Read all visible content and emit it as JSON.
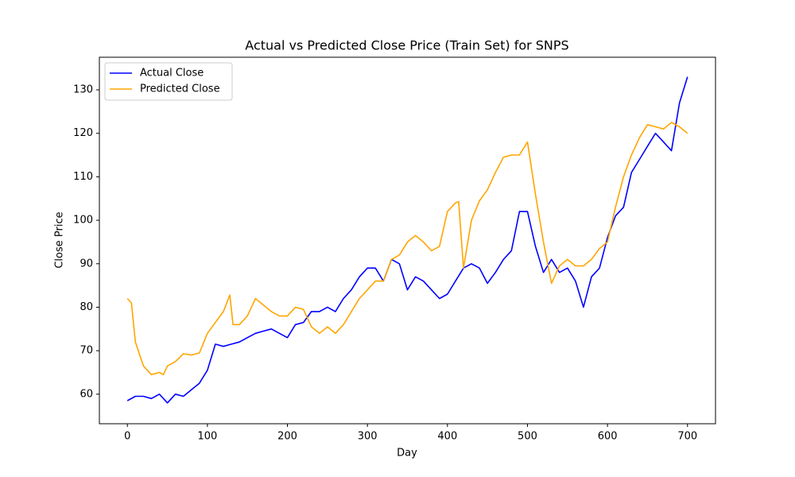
{
  "chart_data": {
    "type": "line",
    "title": "Actual vs Predicted Close Price (Train Set) for SNPS",
    "x_label": "Day",
    "y_label": "Close Price",
    "xlim": [
      -35,
      735
    ],
    "ylim": [
      53.2,
      137.5
    ],
    "xticks": [
      0,
      100,
      200,
      300,
      400,
      500,
      600,
      700
    ],
    "yticks": [
      60,
      70,
      80,
      90,
      100,
      110,
      120,
      130
    ],
    "legend": "upper left",
    "series": [
      {
        "name": "Actual Close",
        "color": "#0000ff",
        "x": [
          0,
          10,
          20,
          30,
          40,
          50,
          60,
          70,
          80,
          90,
          100,
          110,
          120,
          130,
          140,
          150,
          160,
          170,
          180,
          190,
          200,
          210,
          220,
          230,
          240,
          250,
          260,
          270,
          280,
          290,
          300,
          310,
          320,
          330,
          340,
          350,
          360,
          370,
          380,
          390,
          400,
          410,
          420,
          430,
          440,
          450,
          460,
          470,
          480,
          490,
          500,
          510,
          520,
          530,
          540,
          550,
          560,
          570,
          580,
          590,
          600,
          610,
          620,
          630,
          640,
          650,
          660,
          670,
          680,
          690,
          700
        ],
        "values": [
          58.5,
          59.5,
          59.5,
          59,
          60,
          58,
          60,
          59.5,
          61,
          62.5,
          65.5,
          71.5,
          71,
          71.5,
          72,
          73,
          74,
          74.5,
          75,
          74,
          73,
          76,
          76.5,
          79,
          79,
          80,
          79,
          82,
          84,
          87,
          89,
          89,
          86,
          91,
          90,
          84,
          87,
          86,
          84,
          82,
          83,
          86,
          89,
          90,
          89,
          85.5,
          88,
          91,
          93,
          102,
          102,
          94,
          88,
          91,
          88,
          89,
          86,
          80,
          87,
          89,
          96,
          101,
          103,
          111,
          114,
          117,
          120,
          118,
          116,
          127,
          133
        ]
      },
      {
        "name": "Predicted Close",
        "color": "#ffa500",
        "x": [
          0,
          5,
          10,
          20,
          30,
          40,
          45,
          50,
          60,
          70,
          80,
          90,
          100,
          110,
          120,
          128,
          132,
          140,
          150,
          160,
          170,
          180,
          190,
          200,
          210,
          220,
          230,
          240,
          250,
          260,
          270,
          280,
          290,
          300,
          310,
          320,
          330,
          340,
          350,
          360,
          370,
          380,
          390,
          400,
          410,
          414,
          420,
          430,
          440,
          450,
          460,
          470,
          480,
          490,
          500,
          510,
          520,
          530,
          540,
          550,
          560,
          570,
          580,
          590,
          600,
          610,
          620,
          630,
          640,
          650,
          660,
          670,
          680,
          690,
          700
        ],
        "values": [
          82,
          81,
          72,
          66.5,
          64.5,
          65,
          64.5,
          66.5,
          67.5,
          69.3,
          69,
          69.5,
          74,
          76.5,
          79,
          82.8,
          76,
          76,
          78,
          82,
          80.5,
          79,
          78,
          78,
          80,
          79.5,
          75.5,
          74,
          75.5,
          74,
          76,
          79,
          82,
          84,
          86,
          86,
          91,
          92,
          95,
          96.5,
          95,
          93,
          94,
          102,
          104,
          104.3,
          89,
          100,
          104.5,
          107,
          111,
          114.5,
          115,
          115,
          118,
          106,
          95,
          85.5,
          89.5,
          91,
          89.5,
          89.5,
          91,
          93.5,
          95,
          103,
          110,
          115,
          119,
          122,
          121.5,
          121,
          122.5,
          121.5,
          120
        ]
      }
    ]
  }
}
